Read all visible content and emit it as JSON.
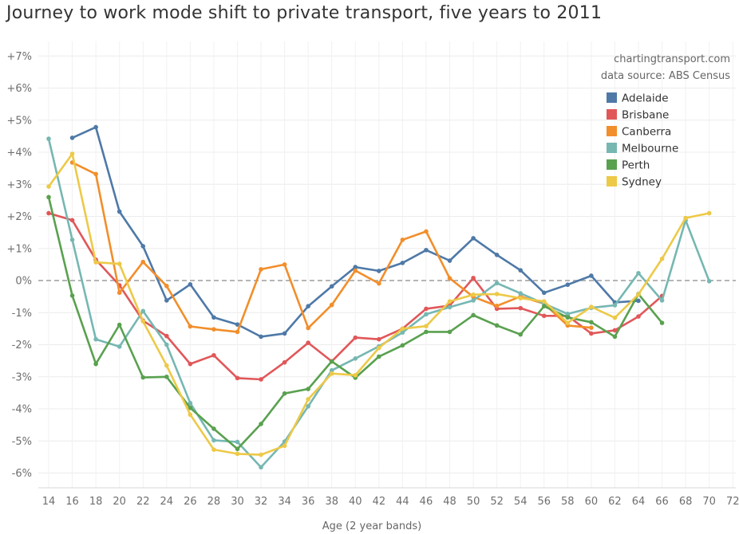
{
  "chart_data": {
    "type": "line",
    "title": "Journey to work mode shift to private transport, five years to 2011",
    "xlabel": "Age (2 year bands)",
    "ylabel": "",
    "x": [
      14,
      16,
      18,
      20,
      22,
      24,
      26,
      28,
      30,
      32,
      34,
      36,
      38,
      40,
      42,
      44,
      46,
      48,
      50,
      52,
      54,
      56,
      58,
      60,
      62,
      64,
      66,
      68,
      70,
      72
    ],
    "xlim": [
      14,
      72
    ],
    "ylim": [
      -6.5,
      7.3
    ],
    "y_ticks": [
      7,
      6,
      5,
      4,
      3,
      2,
      1,
      0,
      -1,
      -2,
      -3,
      -4,
      -5,
      -6
    ],
    "y_tick_labels": [
      "+7%",
      "+6%",
      "+5%",
      "+4%",
      "+3%",
      "+2%",
      "+1%",
      "0%",
      "-1%",
      "-2%",
      "-3%",
      "-4%",
      "-5%",
      "-6%"
    ],
    "grid": true,
    "zero_line": "dashed",
    "annotations": [
      "chartingtransport.com",
      "data source: ABS Census"
    ],
    "legend_position": "top-right",
    "series": [
      {
        "name": "Adelaide",
        "color": "#4e79a7",
        "values": [
          null,
          4.45,
          4.78,
          2.15,
          1.07,
          -0.62,
          -0.12,
          -1.15,
          -1.37,
          -1.75,
          -1.65,
          -0.8,
          -0.18,
          0.42,
          0.3,
          0.55,
          0.95,
          0.62,
          1.32,
          0.8,
          0.32,
          -0.38,
          -0.13,
          0.15,
          -0.68,
          -0.63,
          null,
          null,
          null,
          null
        ]
      },
      {
        "name": "Brisbane",
        "color": "#e15759",
        "values": [
          2.1,
          1.88,
          0.65,
          -0.15,
          -1.25,
          -1.73,
          -2.6,
          -2.33,
          -3.04,
          -3.08,
          -2.55,
          -1.94,
          -2.52,
          -1.78,
          -1.83,
          -1.5,
          -0.88,
          -0.78,
          0.08,
          -0.88,
          -0.86,
          -1.1,
          -1.1,
          -1.65,
          -1.55,
          -1.12,
          -0.48,
          null,
          null,
          null
        ]
      },
      {
        "name": "Canberra",
        "color": "#f28e2b",
        "values": [
          null,
          3.68,
          3.32,
          -0.38,
          0.58,
          -0.17,
          -1.43,
          -1.52,
          -1.6,
          0.35,
          0.5,
          -1.48,
          -0.76,
          0.31,
          -0.09,
          1.27,
          1.53,
          0.07,
          -0.51,
          -0.79,
          -0.5,
          -0.72,
          -1.4,
          -1.47,
          null,
          null,
          null,
          null,
          null,
          null
        ]
      },
      {
        "name": "Melbourne",
        "color": "#76b7b2",
        "values": [
          4.42,
          1.27,
          -1.83,
          -2.06,
          -0.95,
          -2.0,
          -3.82,
          -4.98,
          -5.03,
          -5.82,
          -5.02,
          -3.92,
          -2.8,
          -2.43,
          -2.05,
          -1.62,
          -1.05,
          -0.83,
          -0.62,
          -0.08,
          -0.4,
          -0.72,
          -1.04,
          -0.85,
          -0.77,
          0.23,
          -0.62,
          1.88,
          -0.02,
          null
        ]
      },
      {
        "name": "Perth",
        "color": "#59a14f",
        "values": [
          2.6,
          -0.47,
          -2.6,
          -1.38,
          -3.02,
          -3.0,
          -3.97,
          -4.62,
          -5.25,
          -4.47,
          -3.52,
          -3.38,
          -2.52,
          -3.03,
          -2.37,
          -2.02,
          -1.6,
          -1.6,
          -1.08,
          -1.4,
          -1.68,
          -0.8,
          -1.15,
          -1.3,
          -1.75,
          -0.42,
          -1.32,
          null,
          null,
          null
        ]
      },
      {
        "name": "Sydney",
        "color": "#edc948",
        "values": [
          2.93,
          3.95,
          0.57,
          0.52,
          -1.27,
          -2.65,
          -4.18,
          -5.27,
          -5.4,
          -5.43,
          -5.15,
          -3.7,
          -2.9,
          -2.95,
          -2.1,
          -1.5,
          -1.42,
          -0.65,
          -0.44,
          -0.42,
          -0.55,
          -0.65,
          -1.32,
          -0.82,
          -1.16,
          -0.43,
          0.68,
          1.95,
          2.1,
          null
        ]
      }
    ]
  }
}
